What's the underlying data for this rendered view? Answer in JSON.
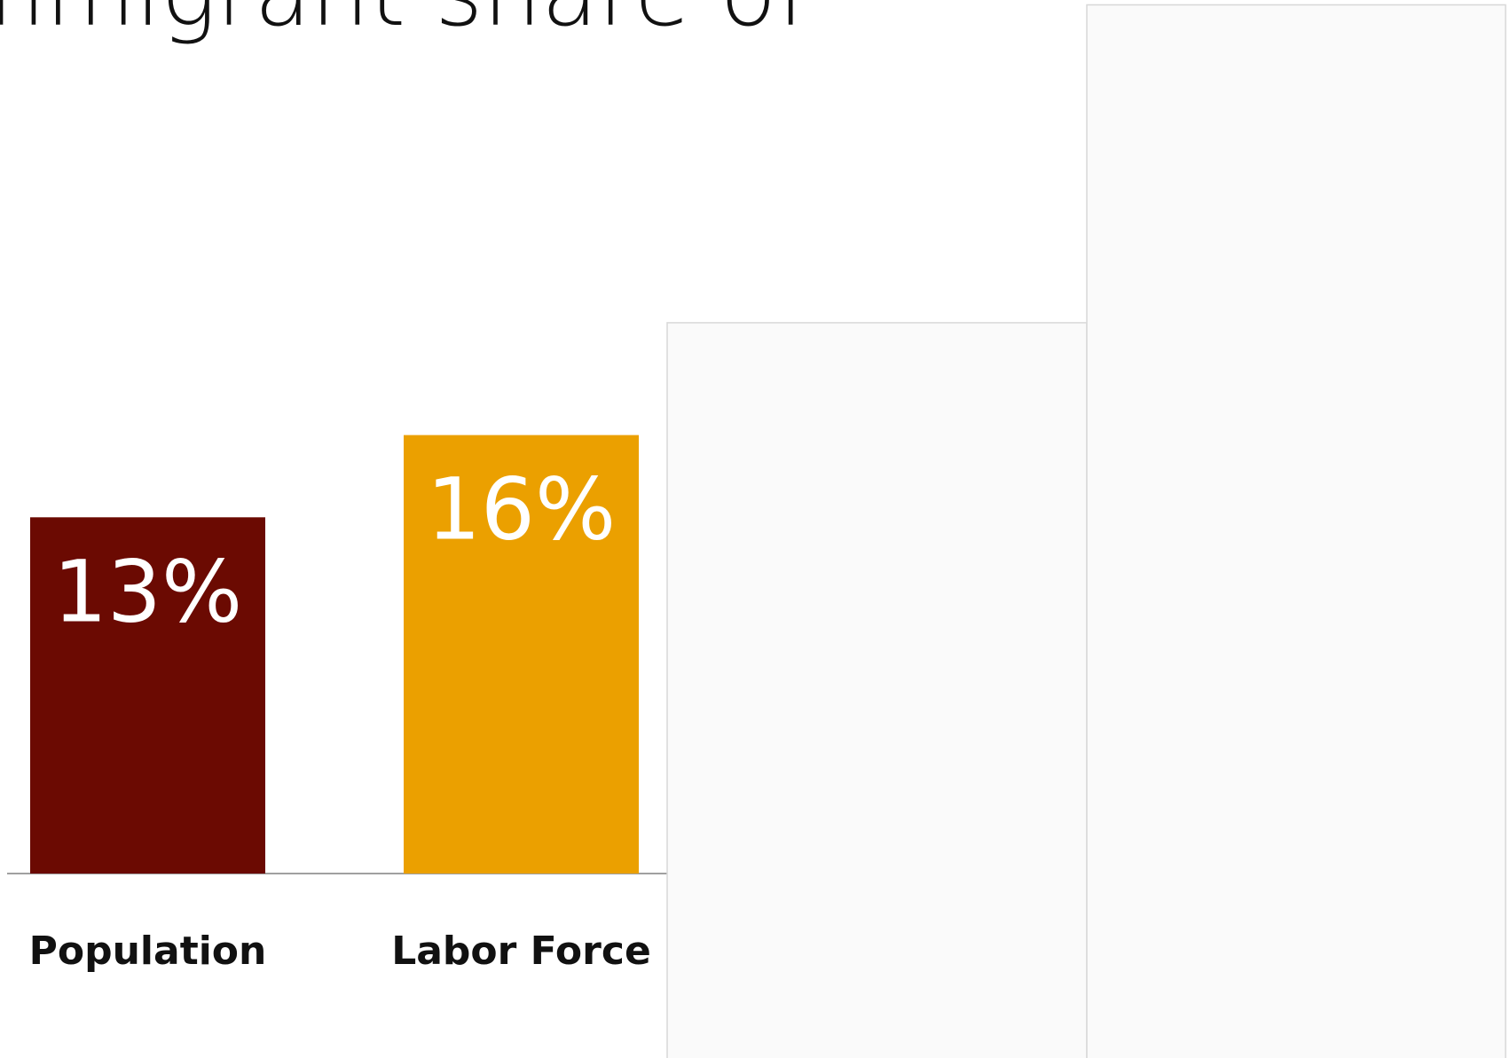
{
  "slide": {
    "title_fragment": "mmigrant share of"
  },
  "chart_data": {
    "type": "bar",
    "categories": [
      "Population",
      "Labor Force",
      "",
      ""
    ],
    "values": [
      13,
      16,
      20.1,
      31.7
    ],
    "value_labels": [
      "13%",
      "16%",
      "",
      ""
    ],
    "bar_colors": [
      "#6b0a02",
      "#eba000",
      "#fafafa",
      "#fafafa"
    ],
    "bar_outline_color": "#d8d8d8",
    "baseline_color": "#a0a0a0",
    "ylim": [
      0,
      32
    ],
    "grid": false,
    "legend": "none"
  }
}
